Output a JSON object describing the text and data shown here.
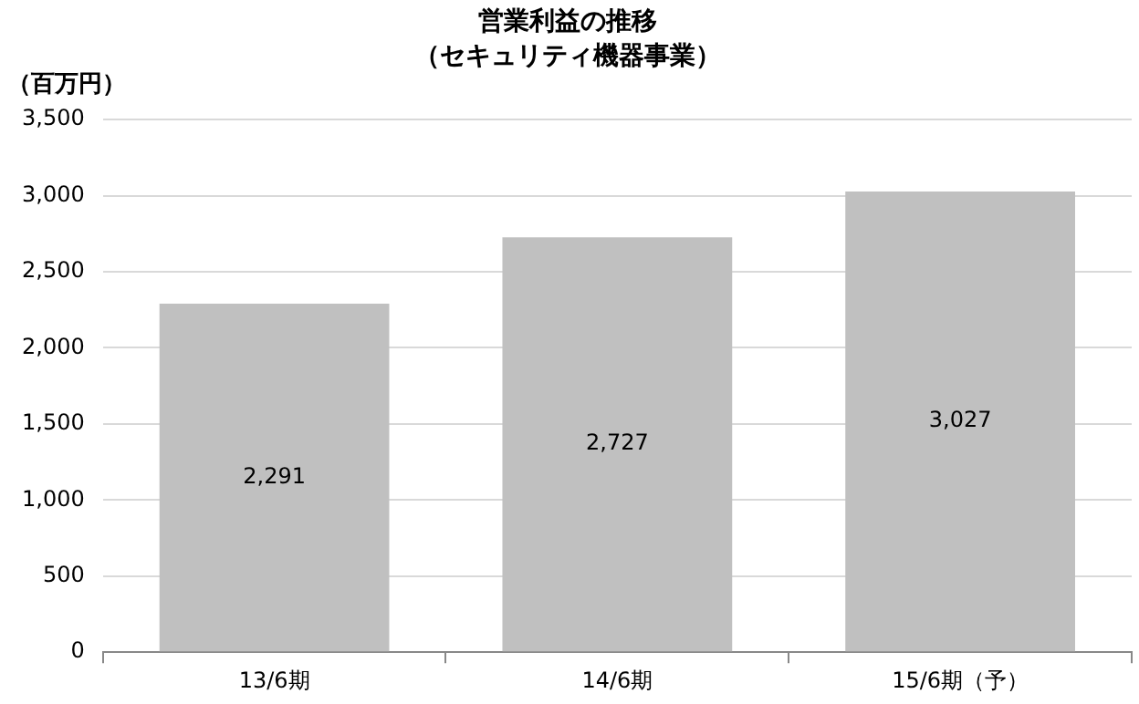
{
  "chart_data": {
    "type": "bar",
    "title": "営業利益の推移",
    "subtitle": "（セキュリティ機器事業）",
    "ylabel": "（百万円）",
    "categories": [
      "13/6期",
      "14/6期",
      "15/6期（予）"
    ],
    "values": [
      2291,
      2727,
      3027
    ],
    "color": "#c0c0c0",
    "ylim": [
      0,
      3500
    ],
    "yticks": [
      {
        "value": 0,
        "label": "0"
      },
      {
        "value": 500,
        "label": "500"
      },
      {
        "value": 1000,
        "label": "1,000"
      },
      {
        "value": 1500,
        "label": "1,500"
      },
      {
        "value": 2000,
        "label": "2,000"
      },
      {
        "value": 2500,
        "label": "2,500"
      },
      {
        "value": 3000,
        "label": "3,000"
      },
      {
        "value": 3500,
        "label": "3,500"
      }
    ],
    "value_labels": [
      "2,291",
      "2,727",
      "3,027"
    ],
    "grid": "y",
    "legend": false
  }
}
